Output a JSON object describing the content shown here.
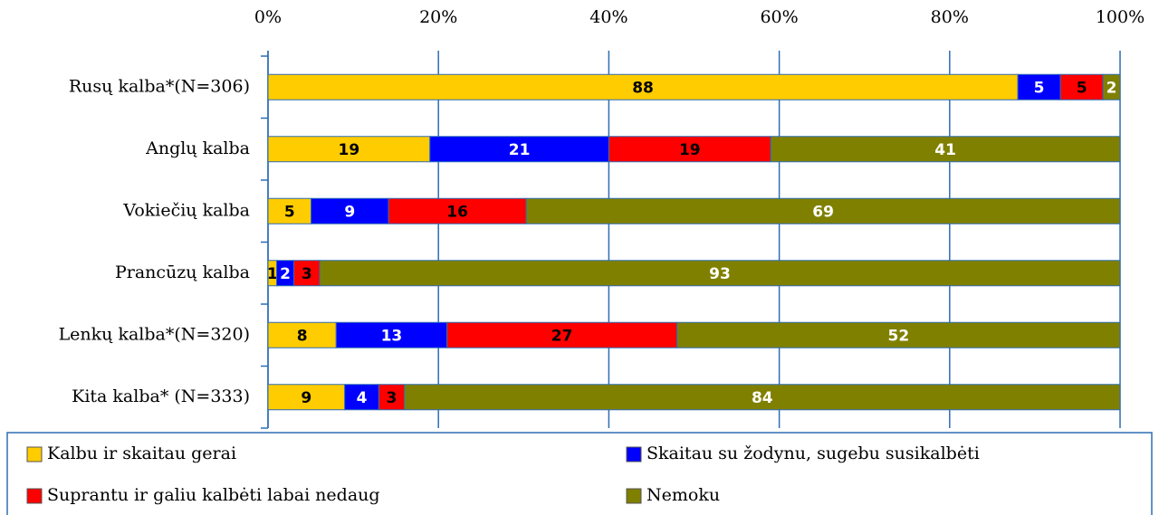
{
  "chart_data": {
    "type": "stacked_bar_percent",
    "orientation": "horizontal",
    "categories": [
      "Rusų kalba*(N=306)",
      "Anglų kalba",
      "Vokiečių kalba",
      "Prancūzų kalba",
      "Lenkų kalba*(N=320)",
      "Kita kalba* (N=333)"
    ],
    "series": [
      {
        "name": "Kalbu ir skaitau gerai",
        "color": "#ffcc00",
        "label_color": "#000000",
        "values": [
          88,
          19,
          5,
          1,
          8,
          9
        ]
      },
      {
        "name": "Skaitau su žodynu, sugebu susikalbėti",
        "color": "#0000ff",
        "label_color": "#ffffff",
        "values": [
          5,
          21,
          9,
          2,
          13,
          4
        ]
      },
      {
        "name": "Suprantu ir galiu kalbėti labai nedaug",
        "color": "#ff0000",
        "label_color": "#000000",
        "values": [
          5,
          19,
          16,
          3,
          27,
          3
        ]
      },
      {
        "name": "Nemoku",
        "color": "#808000",
        "label_color": "#ffffff",
        "values": [
          2,
          41,
          69,
          93,
          52,
          84
        ]
      }
    ],
    "xlim": [
      0,
      100
    ],
    "xticks": [
      {
        "value": 0,
        "label": "0%"
      },
      {
        "value": 20,
        "label": "20%"
      },
      {
        "value": 40,
        "label": "40%"
      },
      {
        "value": 60,
        "label": "60%"
      },
      {
        "value": 80,
        "label": "80%"
      },
      {
        "value": 100,
        "label": "100%"
      }
    ],
    "grid": true,
    "legend": "bottom"
  }
}
